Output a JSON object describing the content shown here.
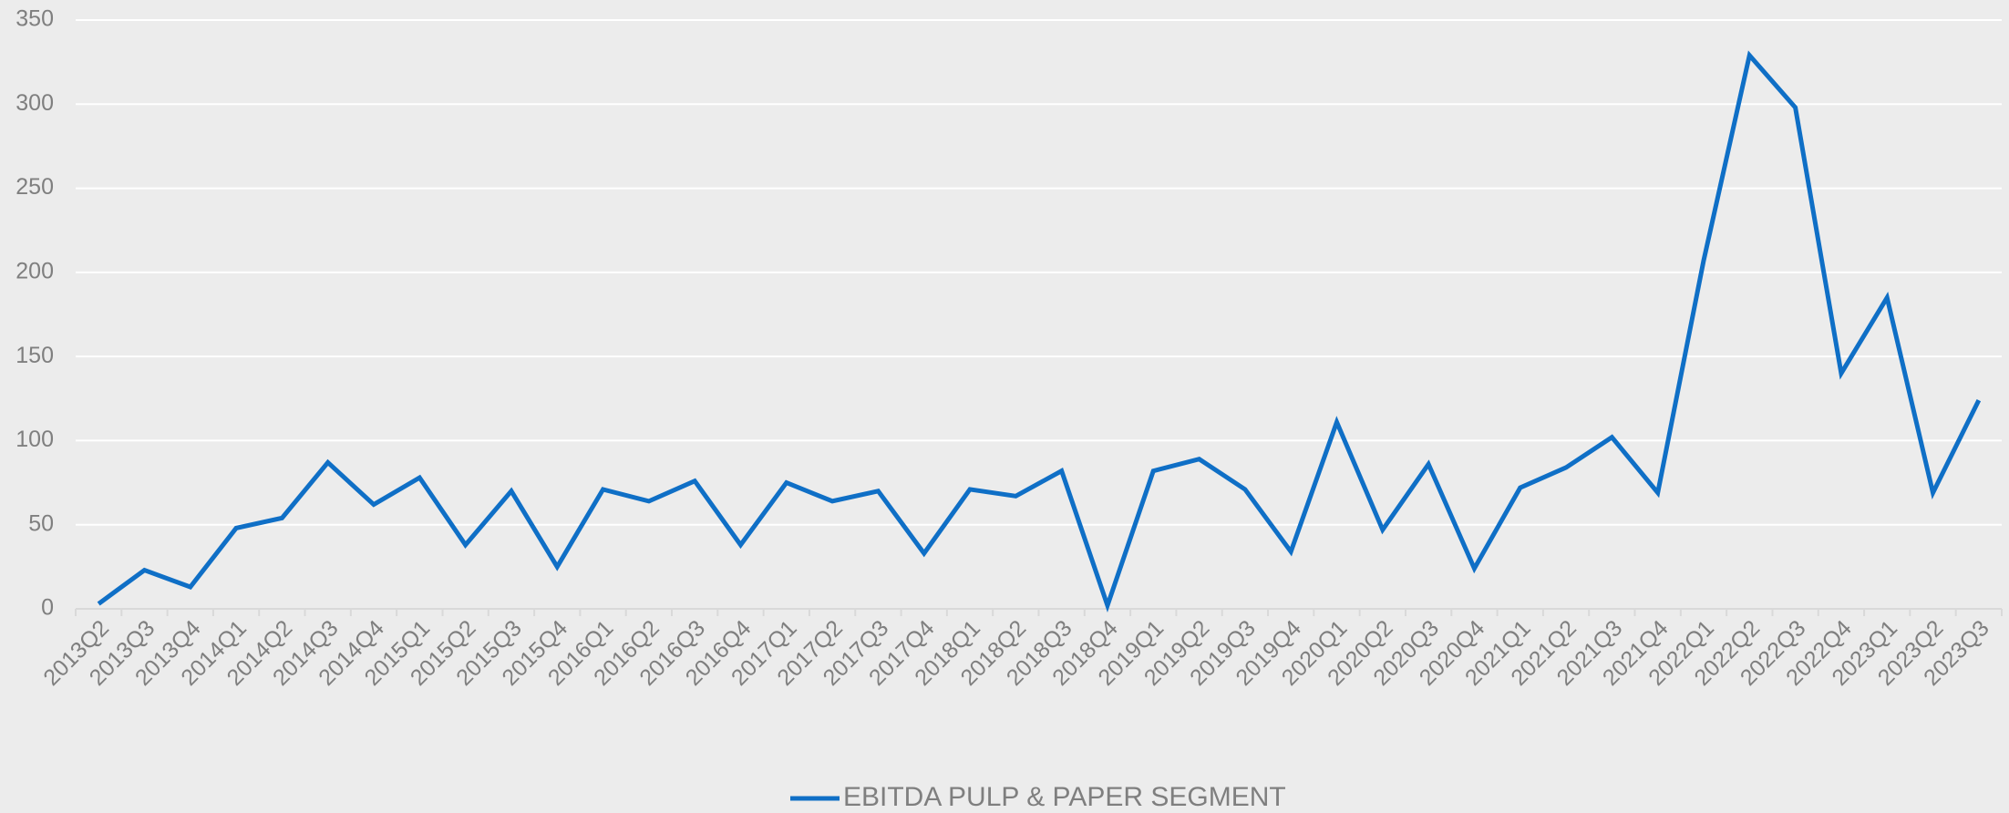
{
  "chart_data": {
    "type": "line",
    "categories": [
      "2013Q2",
      "2013Q3",
      "2013Q4",
      "2014Q1",
      "2014Q2",
      "2014Q3",
      "2014Q4",
      "2015Q1",
      "2015Q2",
      "2015Q3",
      "2015Q4",
      "2016Q1",
      "2016Q2",
      "2016Q3",
      "2016Q4",
      "2017Q1",
      "2017Q2",
      "2017Q3",
      "2017Q4",
      "2018Q1",
      "2018Q2",
      "2018Q3",
      "2018Q4",
      "2019Q1",
      "2019Q2",
      "2019Q3",
      "2019Q4",
      "2020Q1",
      "2020Q2",
      "2020Q3",
      "2020Q4",
      "2021Q1",
      "2021Q2",
      "2021Q3",
      "2021Q4",
      "2022Q1",
      "2022Q2",
      "2022Q3",
      "2022Q4",
      "2023Q1",
      "2023Q2",
      "2023Q3"
    ],
    "series": [
      {
        "name": "EBITDA PULP & PAPER SEGMENT",
        "color": "#0f6fc6",
        "values": [
          3,
          23,
          13,
          48,
          54,
          87,
          62,
          78,
          38,
          70,
          25,
          71,
          64,
          76,
          38,
          75,
          64,
          70,
          33,
          71,
          67,
          82,
          2,
          82,
          89,
          71,
          34,
          111,
          47,
          86,
          24,
          72,
          84,
          102,
          69,
          207,
          329,
          298,
          140,
          185,
          69,
          124
        ]
      }
    ],
    "ylim": [
      0,
      350
    ],
    "yticks": [
      0,
      50,
      100,
      150,
      200,
      250,
      300,
      350
    ],
    "grid": true,
    "legend": "bottom"
  }
}
